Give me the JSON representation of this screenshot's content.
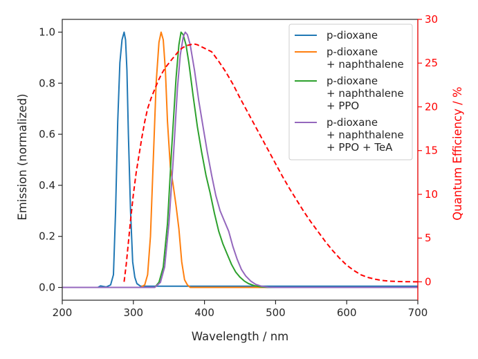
{
  "chart_data": {
    "type": "line",
    "xlabel": "Wavelength / nm",
    "ylabel": "Emission (normalized)",
    "y2label": "Quantum Efficiency / %",
    "xlim": [
      200,
      700
    ],
    "ylim": [
      -0.05,
      1.05
    ],
    "y2lim": [
      -2.1,
      30
    ],
    "x_ticks": [
      "200",
      "300",
      "400",
      "500",
      "600",
      "700"
    ],
    "x_tick_values": [
      200,
      300,
      400,
      500,
      600,
      700
    ],
    "y_ticks": [
      "0.0",
      "0.2",
      "0.4",
      "0.6",
      "0.8",
      "1.0"
    ],
    "y_tick_values": [
      0,
      0.2,
      0.4,
      0.6,
      0.8,
      1.0
    ],
    "y2_ticks": [
      "0",
      "5",
      "10",
      "15",
      "20",
      "25",
      "30"
    ],
    "y2_tick_values": [
      0,
      5,
      10,
      15,
      20,
      25,
      30
    ],
    "legend_position": "top-right",
    "series": [
      {
        "name_lines": [
          "p-dioxane"
        ],
        "color": "#1f77b4",
        "axis": "left",
        "style": "solid",
        "x": [
          200,
          250,
          254,
          258,
          262,
          268,
          272,
          275,
          278,
          281,
          284,
          287,
          289,
          291,
          293,
          296,
          299,
          302,
          305,
          310,
          320,
          700
        ],
        "y": [
          0,
          0,
          0.006,
          0.004,
          0.002,
          0.01,
          0.05,
          0.3,
          0.65,
          0.88,
          0.97,
          1.0,
          0.97,
          0.85,
          0.6,
          0.3,
          0.1,
          0.04,
          0.015,
          0.005,
          0.005,
          0.005
        ]
      },
      {
        "name_lines": [
          "p-dioxane",
          "+ naphthalene"
        ],
        "color": "#ff7f0e",
        "axis": "left",
        "style": "solid",
        "x": [
          200,
          310,
          316,
          320,
          324,
          328,
          332,
          336,
          339,
          342,
          345,
          348,
          352,
          356,
          360,
          364,
          368,
          372,
          376,
          380,
          700
        ],
        "y": [
          0,
          0,
          0.01,
          0.05,
          0.2,
          0.5,
          0.8,
          0.96,
          1.0,
          0.97,
          0.85,
          0.65,
          0.47,
          0.4,
          0.32,
          0.23,
          0.1,
          0.03,
          0.01,
          0.0,
          0.0
        ]
      },
      {
        "name_lines": [
          "p-dioxane",
          "+ naphthalene",
          "+ PPO"
        ],
        "color": "#2ca02c",
        "axis": "left",
        "style": "solid",
        "x": [
          200,
          330,
          336,
          342,
          348,
          354,
          360,
          364,
          367,
          370,
          374,
          378,
          384,
          390,
          396,
          402,
          408,
          414,
          420,
          426,
          432,
          438,
          444,
          450,
          456,
          462,
          470,
          480,
          490,
          700
        ],
        "y": [
          0,
          0,
          0.02,
          0.08,
          0.25,
          0.55,
          0.82,
          0.95,
          1.0,
          0.99,
          0.95,
          0.88,
          0.75,
          0.63,
          0.53,
          0.44,
          0.37,
          0.29,
          0.22,
          0.17,
          0.13,
          0.09,
          0.06,
          0.04,
          0.025,
          0.015,
          0.007,
          0.002,
          0.0,
          0.0
        ]
      },
      {
        "name_lines": [
          "p-dioxane",
          "+ naphthalene",
          "+ PPO + TeA"
        ],
        "color": "#9467bd",
        "axis": "left",
        "style": "solid",
        "x": [
          200,
          330,
          338,
          344,
          350,
          356,
          362,
          366,
          370,
          373,
          376,
          380,
          386,
          392,
          398,
          404,
          410,
          416,
          422,
          428,
          434,
          440,
          446,
          452,
          458,
          465,
          472,
          480,
          490,
          500,
          700
        ],
        "y": [
          0,
          0,
          0.02,
          0.08,
          0.25,
          0.5,
          0.78,
          0.91,
          0.98,
          1.0,
          0.99,
          0.95,
          0.85,
          0.73,
          0.63,
          0.53,
          0.44,
          0.36,
          0.3,
          0.26,
          0.22,
          0.16,
          0.11,
          0.07,
          0.045,
          0.025,
          0.012,
          0.005,
          0.001,
          0.0,
          0.0
        ]
      },
      {
        "name_lines": [],
        "color": "#ff0000",
        "axis": "right",
        "style": "dashed",
        "x": [
          287,
          290,
          293,
          296,
          300,
          304,
          308,
          312,
          316,
          320,
          325,
          330,
          335,
          340,
          345,
          350,
          355,
          360,
          365,
          370,
          375,
          380,
          385,
          390,
          395,
          400,
          405,
          410,
          420,
          430,
          440,
          450,
          460,
          470,
          480,
          490,
          500,
          510,
          520,
          530,
          540,
          550,
          560,
          570,
          580,
          590,
          600,
          610,
          620,
          630,
          640,
          650,
          660,
          670,
          680,
          690,
          700
        ],
        "y": [
          0,
          2.0,
          4.5,
          7.0,
          10.0,
          12.5,
          14.5,
          16.5,
          18.3,
          19.8,
          21.0,
          22.0,
          23.0,
          23.8,
          24.5,
          25.0,
          25.5,
          26.0,
          26.5,
          26.8,
          27.0,
          27.1,
          27.2,
          27.1,
          26.9,
          26.7,
          26.5,
          26.3,
          25.2,
          24.0,
          22.6,
          21.0,
          19.5,
          18.0,
          16.5,
          15.0,
          13.5,
          12.0,
          10.6,
          9.3,
          8.0,
          6.8,
          5.7,
          4.6,
          3.6,
          2.7,
          1.9,
          1.3,
          0.8,
          0.5,
          0.3,
          0.15,
          0.08,
          0.04,
          0.02,
          0.01,
          0.0
        ]
      }
    ]
  }
}
